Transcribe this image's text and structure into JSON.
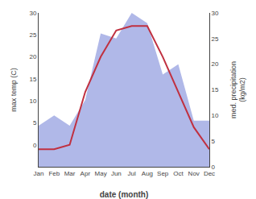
{
  "chart_data": {
    "type": "line",
    "x_label": "date (month)",
    "y_label": "max temp (C)",
    "y2_label": "med. precipitation\n(kg/m2)",
    "categories": [
      "Jan",
      "Feb",
      "Mar",
      "Apr",
      "May",
      "Jun",
      "Jul",
      "Aug",
      "Sep",
      "Oct",
      "Nov",
      "Dec"
    ],
    "series": [
      {
        "type": "area",
        "axis": "y2",
        "color": "#b0b8e8",
        "values": [
          8,
          10,
          8,
          13,
          26,
          25,
          30,
          28,
          18,
          20,
          9,
          9
        ]
      },
      {
        "type": "line",
        "color": "#c03040",
        "values": [
          -1,
          -1,
          0,
          12,
          20,
          26,
          27,
          27,
          20,
          12,
          4,
          -1
        ]
      }
    ],
    "ylim": [
      -5,
      30
    ],
    "yticks": [
      0,
      5,
      10,
      15,
      20,
      25,
      30
    ],
    "y2lim": [
      0,
      30
    ],
    "y2ticks": [
      0,
      5,
      10,
      15,
      20,
      25,
      30
    ],
    "grid": false
  }
}
